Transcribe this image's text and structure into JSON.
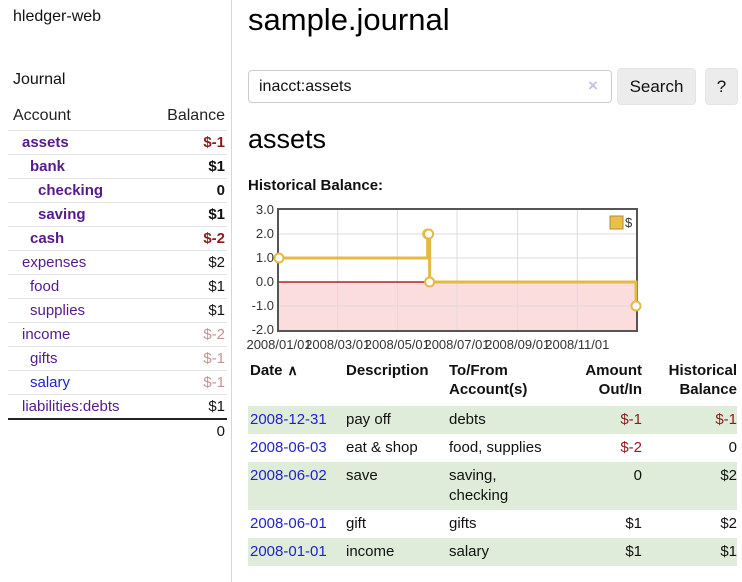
{
  "app": {
    "brand": "hledger-web",
    "nav_journal": "Journal"
  },
  "colors": {
    "link_purple": "#551a8b",
    "link_blue": "#2222cc",
    "negative": "#8e1a1a",
    "negative_dim": "#c59494",
    "positive": "#111111",
    "row_green": "#deecd9",
    "chart_line": "#e3ba45",
    "chart_marker_fill": "#ffffff",
    "chart_zero_line": "#990000",
    "chart_negative_bg": "#fcdddd",
    "chart_grid": "#dcdcdc",
    "chart_border": "#555555",
    "chart_legend_fill": "#e9c04a",
    "chart_legend_stroke": "#b28d2e"
  },
  "sidebar": {
    "header": {
      "account": "Account",
      "balance": "Balance"
    },
    "rows": [
      {
        "name": "assets",
        "depth": 1,
        "bold": true,
        "balance": "$-1",
        "balance_style": "negative"
      },
      {
        "name": "bank",
        "depth": 2,
        "bold": true,
        "balance": "$1",
        "balance_style": "positive"
      },
      {
        "name": "checking",
        "depth": 3,
        "bold": true,
        "balance": "0",
        "balance_style": "positive"
      },
      {
        "name": "saving",
        "depth": 3,
        "bold": true,
        "balance": "$1",
        "balance_style": "positive"
      },
      {
        "name": "cash",
        "depth": 2,
        "bold": true,
        "balance": "$-2",
        "balance_style": "negative"
      },
      {
        "name": "expenses",
        "depth": 1,
        "bold": false,
        "balance": "$2",
        "balance_style": "positive"
      },
      {
        "name": "food",
        "depth": 2,
        "bold": false,
        "balance": "$1",
        "balance_style": "positive"
      },
      {
        "name": "supplies",
        "depth": 2,
        "bold": false,
        "balance": "$1",
        "balance_style": "positive"
      },
      {
        "name": "income",
        "depth": 1,
        "bold": false,
        "balance": "$-2",
        "balance_style": "negative_dim"
      },
      {
        "name": "gifts",
        "depth": 2,
        "bold": false,
        "balance": "$-1",
        "balance_style": "negative_dim"
      },
      {
        "name": "salary",
        "depth": 2,
        "bold": false,
        "balance": "$-1",
        "balance_style": "negative_dim",
        "link_style": "unvisited"
      },
      {
        "name": "liabilities:debts",
        "depth": 1,
        "bold": false,
        "balance": "$1",
        "balance_style": "positive"
      }
    ],
    "total": "0"
  },
  "header": {
    "title": "sample.journal"
  },
  "search": {
    "value": "inacct:assets",
    "clear_label": "×",
    "button": "Search",
    "help": "?"
  },
  "account_page": {
    "title": "assets",
    "chart_label": "Historical Balance:"
  },
  "chart_data": {
    "type": "line",
    "title": "Historical Balance:",
    "series": [
      {
        "name": "$",
        "style": "step-after",
        "points": [
          [
            "2008-01-01",
            1
          ],
          [
            "2008-06-01",
            2
          ],
          [
            "2008-06-02",
            2
          ],
          [
            "2008-06-03",
            0
          ],
          [
            "2008-12-31",
            -1
          ]
        ]
      }
    ],
    "x_range": [
      "2008-01-01",
      "2008-12-31"
    ],
    "x_ticks": [
      {
        "date": "2008-01-01",
        "label": "2008/01/01"
      },
      {
        "date": "2008-03-01",
        "label": "2008/03/01"
      },
      {
        "date": "2008-05-01",
        "label": "2008/05/01"
      },
      {
        "date": "2008-07-01",
        "label": "2008/07/01"
      },
      {
        "date": "2008-09-01",
        "label": "2008/09/01"
      },
      {
        "date": "2008-11-01",
        "label": "2008/11/01"
      }
    ],
    "y_ticks": [
      "3.0",
      "2.0",
      "1.0",
      "0.0",
      "-1.0",
      "-2.0"
    ],
    "ylim": [
      -2,
      3
    ],
    "grid": true,
    "legend": {
      "label": "$",
      "position": "top-right"
    },
    "negative_region_shaded": true
  },
  "register": {
    "columns": [
      "Date",
      "Description",
      "To/From Account(s)",
      "Amount Out/In",
      "Historical Balance"
    ],
    "sort_indicator": "∧",
    "rows": [
      {
        "date": "2008-12-31",
        "description": "pay off",
        "accounts": [
          "debts"
        ],
        "amount": "$-1",
        "amount_style": "negative",
        "balance": "$-1",
        "balance_style": "negative",
        "shaded": true
      },
      {
        "date": "2008-06-03",
        "description": "eat & shop",
        "accounts": [
          "food, supplies"
        ],
        "amount": "$-2",
        "amount_style": "negative",
        "balance": "0",
        "balance_style": "positive",
        "shaded": false
      },
      {
        "date": "2008-06-02",
        "description": "save",
        "accounts": [
          "saving,",
          "checking"
        ],
        "amount": "0",
        "amount_style": "positive",
        "balance": "$2",
        "balance_style": "positive",
        "shaded": true
      },
      {
        "date": "2008-06-01",
        "description": "gift",
        "accounts": [
          "gifts"
        ],
        "amount": "$1",
        "amount_style": "positive",
        "balance": "$2",
        "balance_style": "positive",
        "shaded": false
      },
      {
        "date": "2008-01-01",
        "description": "income",
        "accounts": [
          "salary"
        ],
        "amount": "$1",
        "amount_style": "positive",
        "balance": "$1",
        "balance_style": "positive",
        "shaded": true
      }
    ]
  }
}
